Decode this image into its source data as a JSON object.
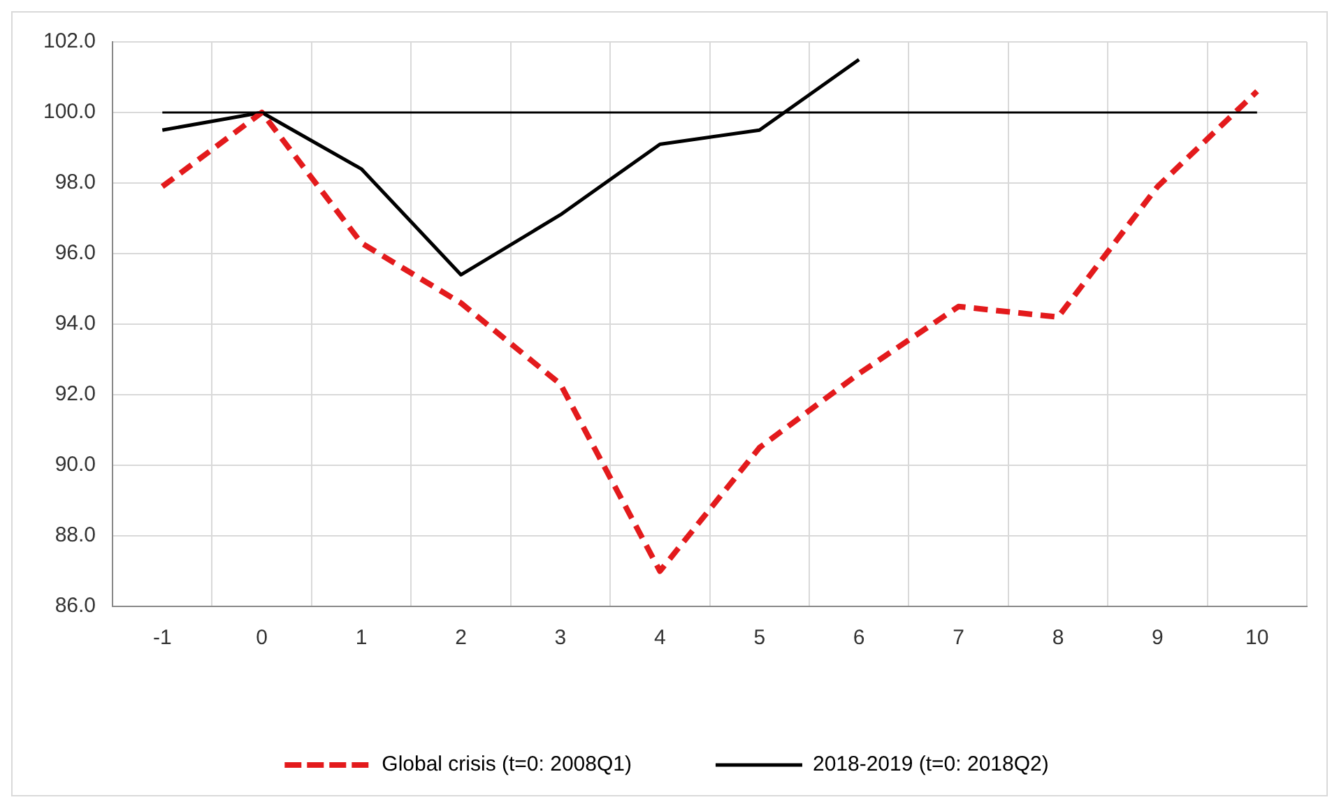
{
  "chart_data": {
    "type": "line",
    "categories": [
      "-1",
      "0",
      "1",
      "2",
      "3",
      "4",
      "5",
      "6",
      "7",
      "8",
      "9",
      "10"
    ],
    "series": [
      {
        "name": "Global crisis (t=0: 2008Q1)",
        "color": "#e31a1c",
        "line_style": "dashed",
        "values": [
          97.9,
          100.0,
          96.3,
          94.6,
          92.3,
          87.0,
          90.5,
          92.6,
          94.5,
          94.2,
          97.9,
          100.6
        ]
      },
      {
        "name": "2018-2019 (t=0: 2018Q2)",
        "color": "#000000",
        "line_style": "solid",
        "values": [
          99.5,
          100.0,
          98.4,
          95.4,
          97.1,
          99.1,
          99.5,
          101.5,
          null,
          null,
          null,
          null
        ]
      }
    ],
    "ref_lines": [
      {
        "axis": "y",
        "value": 100,
        "color": "#000000"
      }
    ],
    "ylim": [
      86,
      102
    ],
    "yticks": [
      {
        "value": 86,
        "label": "86.0"
      },
      {
        "value": 88,
        "label": "88.0"
      },
      {
        "value": 90,
        "label": "90.0"
      },
      {
        "value": 92,
        "label": "92.0"
      },
      {
        "value": 94,
        "label": "94.0"
      },
      {
        "value": 96,
        "label": "96.0"
      },
      {
        "value": 98,
        "label": "98.0"
      },
      {
        "value": 100,
        "label": "100.0"
      },
      {
        "value": 102,
        "label": "102.0"
      }
    ],
    "grid": true,
    "legend": "bottom",
    "marker": "none"
  }
}
